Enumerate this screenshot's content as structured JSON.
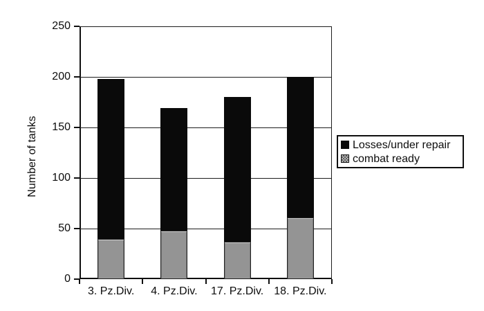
{
  "figure": {
    "background": "#ffffff",
    "bar_color_losses": "#0a0a0a",
    "bar_color_ready": "#949494",
    "axis_color": "#0f0f0f"
  },
  "chart_data": {
    "type": "bar",
    "stacked": true,
    "title": "",
    "xlabel": "",
    "ylabel": "Number of tanks",
    "categories": [
      "3. Pz.Div.",
      "4. Pz.Div.",
      "17. Pz.Div.",
      "18. Pz.Div."
    ],
    "series": [
      {
        "name": "Losses/under repair",
        "color": "#0a0a0a",
        "pattern": "solid",
        "values": [
          158,
          121,
          143,
          139
        ]
      },
      {
        "name": "combat ready",
        "color": "#949494",
        "pattern": "checker",
        "values": [
          40,
          48,
          37,
          61
        ]
      }
    ],
    "stack_totals": [
      198,
      169,
      180,
      200
    ],
    "ylim": [
      0,
      250
    ],
    "yticks": [
      0,
      50,
      100,
      150,
      200,
      250
    ],
    "grid": "horizontal",
    "legend_position": "right-middle"
  }
}
